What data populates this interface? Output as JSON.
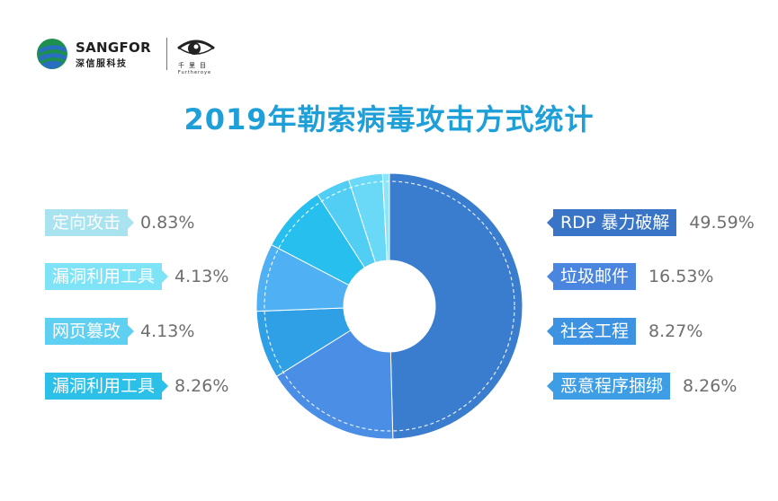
{
  "header": {
    "brand": "SANGFOR",
    "brand_sub": "深信服科技",
    "partner_cn": "千里目",
    "partner_en": "Furtheroye"
  },
  "title": "2019年勒索病毒攻击方式统计",
  "chart_data": {
    "type": "pie",
    "title": "2019年勒索病毒攻击方式统计",
    "slices": [
      {
        "label": "RDP 暴力破解",
        "value": 49.59,
        "value_label": "49.59%",
        "color": "#3a7dcf"
      },
      {
        "label": "垃圾邮件",
        "value": 16.53,
        "value_label": "16.53%",
        "color": "#4a8ee6"
      },
      {
        "label": "社会工程",
        "value": 8.27,
        "value_label": "8.27%",
        "color": "#2f9fe6"
      },
      {
        "label": "恶意程序捆绑",
        "value": 8.26,
        "value_label": "8.26%",
        "color": "#4fb1f3"
      },
      {
        "label": "漏洞利用工具",
        "value": 8.26,
        "value_label": "8.26%",
        "color": "#26bfee"
      },
      {
        "label": "网页篡改",
        "value": 4.13,
        "value_label": "4.13%",
        "color": "#52cef5"
      },
      {
        "label": "漏洞利用工具",
        "value": 4.13,
        "value_label": "4.13%",
        "color": "#6ad8f7"
      },
      {
        "label": "定向攻击",
        "value": 0.83,
        "value_label": "0.83%",
        "color": "#8be6fa"
      }
    ]
  },
  "legend_right": [
    {
      "label": "RDP 暴力破解",
      "pct": "49.59%",
      "color": "#3a74c6"
    },
    {
      "label": "垃圾邮件",
      "pct": "16.53%",
      "color": "#4a85e0"
    },
    {
      "label": "社会工程",
      "pct": "8.27%",
      "color": "#3d93e2"
    },
    {
      "label": "恶意程序捆绑",
      "pct": "8.26%",
      "color": "#3d9ee6"
    }
  ],
  "legend_left": [
    {
      "label": "定向攻击",
      "pct": "0.83%",
      "color": "#a8e3ef"
    },
    {
      "label": "漏洞利用工具",
      "pct": "4.13%",
      "color": "#7fe3f7"
    },
    {
      "label": "网页篡改",
      "pct": "4.13%",
      "color": "#5fcff2"
    },
    {
      "label": "漏洞利用工具",
      "pct": "8.26%",
      "color": "#2cbfe8"
    }
  ]
}
